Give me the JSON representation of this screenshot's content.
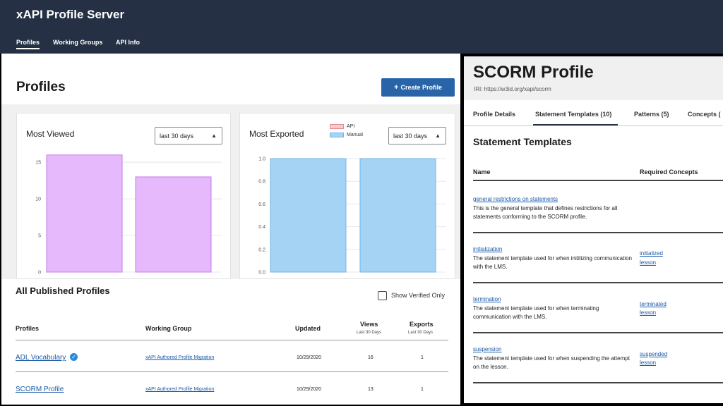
{
  "header": {
    "app_title": "xAPI Profile Server",
    "nav": [
      {
        "label": "Profiles"
      },
      {
        "label": "Working Groups"
      },
      {
        "label": "API Info"
      }
    ]
  },
  "profiles_page": {
    "title": "Profiles",
    "create_button": "Create Profile",
    "most_viewed": {
      "title": "Most Viewed",
      "range": "last 30 days"
    },
    "most_exported": {
      "title": "Most Exported",
      "range": "last 30 days",
      "legend": [
        "API",
        "Manual"
      ]
    },
    "published": {
      "title": "All Published Profiles",
      "verified_label": "Show Verified Only",
      "columns": {
        "profiles": "Profiles",
        "working_group": "Working Group",
        "updated": "Updated",
        "views": "Views",
        "views_sub": "Last 30 Days",
        "exports": "Exports",
        "exports_sub": "Last 30 Days"
      },
      "rows": [
        {
          "name": "ADL Vocabulary",
          "group": "xAPI Authored Profile Migration",
          "updated": "10/29/2020",
          "views": "16",
          "exports": "1"
        },
        {
          "name": "SCORM Profile",
          "group": "xAPI Authored Profile Migration",
          "updated": "10/29/2020",
          "views": "13",
          "exports": "1"
        }
      ]
    }
  },
  "scorm_panel": {
    "title": "SCORM Profile",
    "iri": "IRI: https://w3id.org/xapi/scorm",
    "tabs": [
      {
        "label": "Profile Details"
      },
      {
        "label": "Statement Templates (10)"
      },
      {
        "label": "Patterns (5)"
      },
      {
        "label": "Concepts ("
      }
    ],
    "section_title": "Statement Templates",
    "columns": {
      "name": "Name",
      "concepts": "Required Concepts"
    },
    "templates": [
      {
        "name": "general restrictions on statements",
        "description": "This is the general template that defines restrictions for all statements conforming to the SCORM profile.",
        "concepts": []
      },
      {
        "name": "initialization",
        "description": "The statement template used for when initilizing communication with the LMS.",
        "concepts": [
          "initialized",
          "lesson"
        ]
      },
      {
        "name": "termination",
        "description": "The statement template used for when terminating communication with the LMS.",
        "concepts": [
          "terminated",
          "lesson"
        ]
      },
      {
        "name": "suspension",
        "description": "The statement template used for when suspending the attempt on the lesson.",
        "concepts": [
          "suspended",
          "lesson"
        ]
      }
    ]
  },
  "chart_data": [
    {
      "type": "bar",
      "title": "Most Viewed",
      "categories": [
        "",
        ""
      ],
      "values": [
        16,
        13
      ],
      "y_ticks": [
        "0",
        "5",
        "10",
        "15"
      ],
      "ylim": [
        0,
        18
      ],
      "color": "#e6b8fc",
      "border": "#c77ee8",
      "grid": true
    },
    {
      "type": "bar",
      "title": "Most Exported",
      "categories": [
        "",
        ""
      ],
      "series": [
        {
          "name": "API",
          "values": [
            0,
            0
          ],
          "color": "#f9c9cc",
          "border": "#e88a93"
        },
        {
          "name": "Manual",
          "values": [
            1,
            1
          ],
          "color": "#a5d3f4",
          "border": "#72b4e4"
        }
      ],
      "y_ticks": [
        "0.0",
        "0.2",
        "0.4",
        "0.6",
        "0.8",
        "1.0"
      ],
      "ylim": [
        0,
        1
      ],
      "grid": true
    }
  ]
}
